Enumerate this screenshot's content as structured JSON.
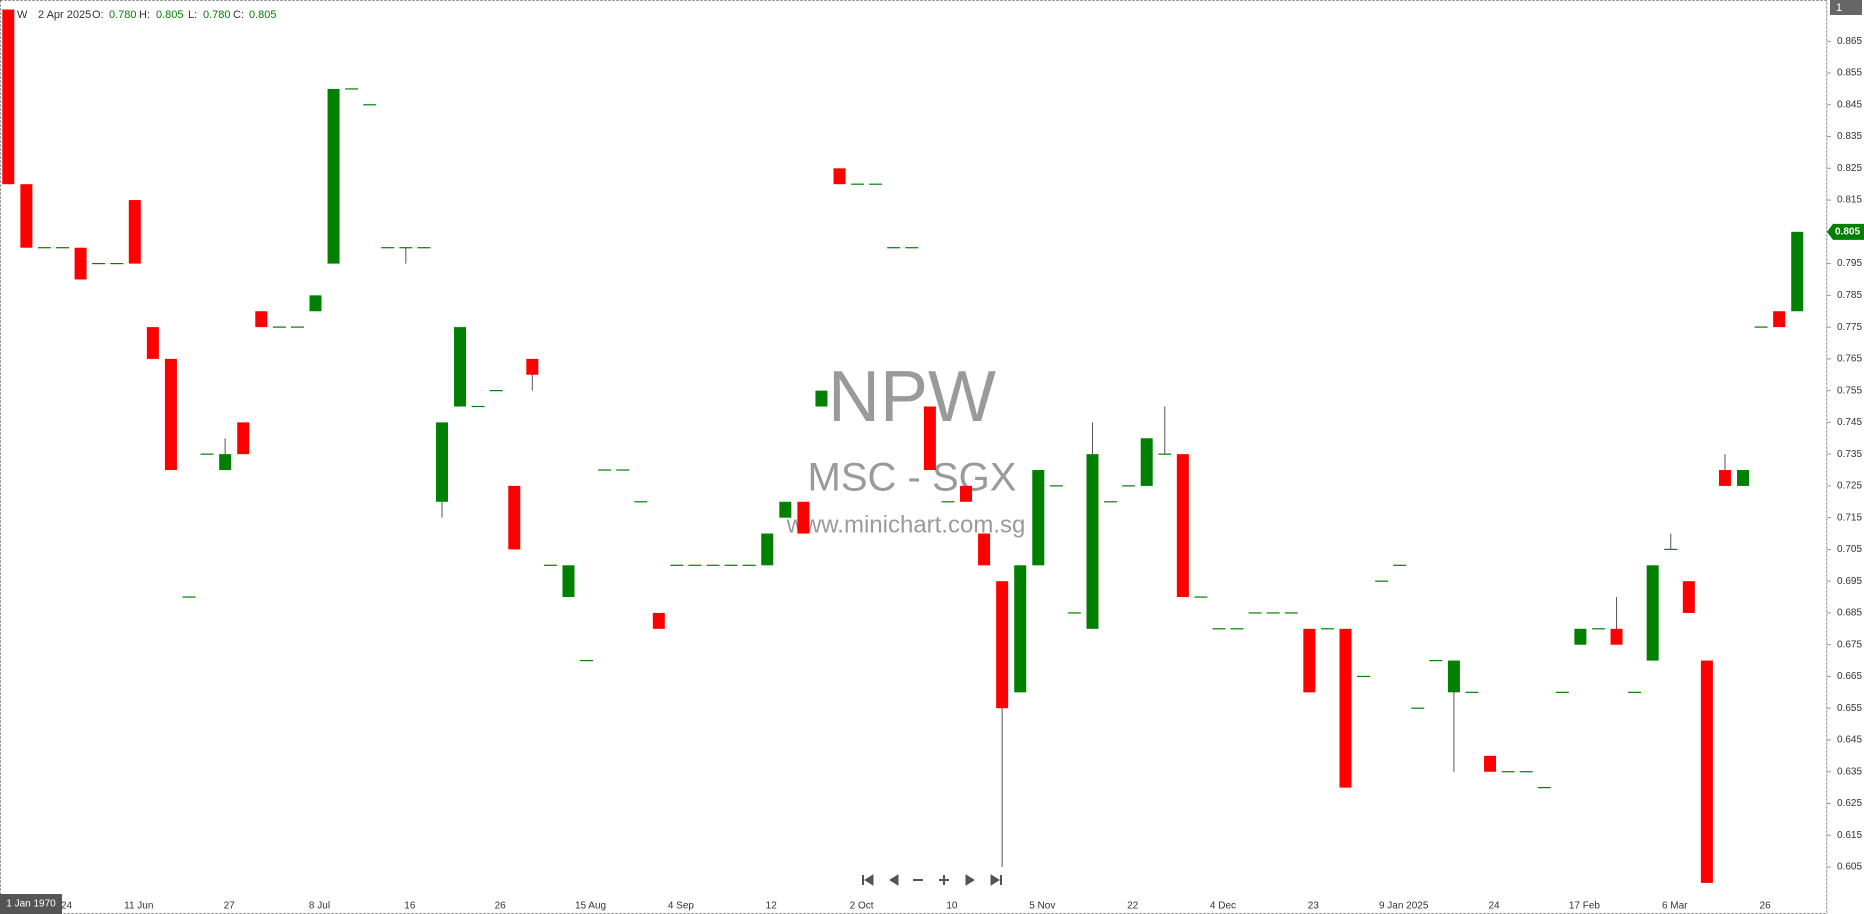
{
  "chart_data": {
    "type": "candlestick",
    "legend": {
      "symbol": "W",
      "date": "2 Apr 2025",
      "fields": [
        {
          "name": "O:",
          "value": "0.780"
        },
        {
          "name": "H:",
          "value": "0.805"
        },
        {
          "name": "L:",
          "value": "0.780"
        },
        {
          "name": "C:",
          "value": "0.805"
        }
      ]
    },
    "watermark": {
      "symbol": "NPW",
      "exchange": "MSC - SGX",
      "site": "www.minichart.com.sg"
    },
    "crosshair_date": "1 Jan 1970",
    "pane_badge": "1",
    "up_color": "#008000",
    "down_color": "#ff0000",
    "wick_color": "#555555",
    "ylim": [
      0.5965,
      0.878
    ],
    "yticks": [
      0.605,
      0.615,
      0.625,
      0.635,
      0.645,
      0.655,
      0.665,
      0.675,
      0.685,
      0.695,
      0.705,
      0.715,
      0.725,
      0.735,
      0.745,
      0.755,
      0.765,
      0.775,
      0.785,
      0.795,
      0.805,
      0.815,
      0.825,
      0.835,
      0.845,
      0.855,
      0.865
    ],
    "categories": [
      null,
      null,
      null,
      "24",
      null,
      null,
      null,
      "11 Jun",
      null,
      null,
      null,
      null,
      "27",
      null,
      null,
      null,
      null,
      "8 Jul",
      null,
      null,
      null,
      null,
      "16",
      null,
      null,
      null,
      null,
      "26",
      null,
      null,
      null,
      null,
      "15 Aug",
      null,
      null,
      null,
      null,
      "4 Sep",
      null,
      null,
      null,
      null,
      "12",
      null,
      null,
      null,
      null,
      "2 Oct",
      null,
      null,
      null,
      null,
      "10",
      null,
      null,
      null,
      null,
      "5 Nov",
      null,
      null,
      null,
      null,
      "22",
      null,
      null,
      null,
      null,
      "4 Dec",
      null,
      null,
      null,
      null,
      "23",
      null,
      null,
      null,
      null,
      "9 Jan 2025",
      null,
      null,
      null,
      null,
      "24",
      null,
      null,
      null,
      null,
      "17 Feb",
      null,
      null,
      null,
      null,
      "6 Mar",
      null,
      null,
      null,
      null,
      "26",
      null,
      null
    ],
    "open": [
      0.875,
      0.82,
      0.8,
      0.8,
      0.8,
      0.795,
      0.795,
      0.815,
      0.775,
      0.765,
      0.69,
      0.735,
      0.73,
      0.745,
      0.78,
      0.775,
      0.775,
      0.78,
      0.795,
      0.85,
      0.845,
      0.8,
      0.8,
      0.8,
      0.72,
      0.75,
      0.75,
      0.755,
      0.725,
      0.765,
      0.7,
      0.69,
      0.67,
      0.73,
      0.73,
      0.72,
      0.685,
      0.7,
      0.7,
      0.7,
      0.7,
      0.7,
      0.7,
      0.715,
      0.72,
      0.75,
      0.825,
      0.82,
      0.82,
      0.8,
      0.8,
      0.75,
      0.72,
      0.725,
      0.71,
      0.695,
      0.66,
      0.7,
      0.725,
      0.685,
      0.68,
      0.72,
      0.725,
      0.725,
      0.735,
      0.735,
      0.69,
      0.68,
      0.68,
      0.685,
      0.685,
      0.685,
      0.68,
      0.68,
      0.68,
      0.665,
      0.695,
      0.7,
      0.655,
      0.67,
      0.66,
      0.66,
      0.64,
      0.635,
      0.635,
      0.63,
      0.66,
      0.675,
      0.68,
      0.68,
      0.66,
      0.67,
      0.705,
      0.695,
      0.67,
      0.73,
      0.725,
      0.775,
      0.78,
      0.78
    ],
    "high": [
      0.875,
      0.82,
      0.8,
      0.8,
      0.8,
      0.795,
      0.795,
      0.815,
      0.775,
      0.765,
      0.69,
      0.735,
      0.74,
      0.745,
      0.78,
      0.775,
      0.775,
      0.785,
      0.85,
      0.85,
      0.845,
      0.8,
      0.8,
      0.8,
      0.745,
      0.775,
      0.75,
      0.755,
      0.725,
      0.765,
      0.7,
      0.7,
      0.67,
      0.73,
      0.73,
      0.72,
      0.685,
      0.7,
      0.7,
      0.7,
      0.7,
      0.7,
      0.71,
      0.72,
      0.72,
      0.755,
      0.825,
      0.82,
      0.82,
      0.8,
      0.8,
      0.75,
      0.72,
      0.725,
      0.71,
      0.695,
      0.7,
      0.73,
      0.725,
      0.685,
      0.745,
      0.72,
      0.725,
      0.74,
      0.75,
      0.735,
      0.69,
      0.68,
      0.68,
      0.685,
      0.685,
      0.685,
      0.68,
      0.68,
      0.68,
      0.665,
      0.695,
      0.7,
      0.655,
      0.67,
      0.67,
      0.66,
      0.64,
      0.635,
      0.635,
      0.63,
      0.66,
      0.68,
      0.68,
      0.69,
      0.66,
      0.7,
      0.71,
      0.695,
      0.67,
      0.735,
      0.73,
      0.775,
      0.78,
      0.805
    ],
    "low": [
      0.82,
      0.8,
      0.8,
      0.8,
      0.79,
      0.795,
      0.795,
      0.795,
      0.765,
      0.73,
      0.69,
      0.735,
      0.73,
      0.735,
      0.775,
      0.775,
      0.775,
      0.78,
      0.795,
      0.85,
      0.845,
      0.8,
      0.795,
      0.8,
      0.715,
      0.75,
      0.75,
      0.755,
      0.705,
      0.755,
      0.7,
      0.69,
      0.67,
      0.73,
      0.73,
      0.72,
      0.68,
      0.7,
      0.7,
      0.7,
      0.7,
      0.7,
      0.7,
      0.715,
      0.71,
      0.75,
      0.82,
      0.82,
      0.82,
      0.8,
      0.8,
      0.73,
      0.72,
      0.72,
      0.7,
      0.605,
      0.66,
      0.7,
      0.725,
      0.685,
      0.68,
      0.72,
      0.725,
      0.725,
      0.735,
      0.69,
      0.69,
      0.68,
      0.68,
      0.685,
      0.685,
      0.685,
      0.66,
      0.68,
      0.63,
      0.665,
      0.695,
      0.7,
      0.655,
      0.67,
      0.635,
      0.66,
      0.635,
      0.635,
      0.635,
      0.63,
      0.66,
      0.675,
      0.68,
      0.675,
      0.66,
      0.67,
      0.705,
      0.685,
      0.6,
      0.725,
      0.725,
      0.775,
      0.775,
      0.78
    ],
    "close": [
      0.82,
      0.8,
      0.8,
      0.8,
      0.79,
      0.795,
      0.795,
      0.795,
      0.765,
      0.73,
      0.69,
      0.735,
      0.735,
      0.735,
      0.775,
      0.775,
      0.775,
      0.785,
      0.85,
      0.85,
      0.845,
      0.8,
      0.8,
      0.8,
      0.745,
      0.775,
      0.75,
      0.755,
      0.705,
      0.76,
      0.7,
      0.7,
      0.67,
      0.73,
      0.73,
      0.72,
      0.68,
      0.7,
      0.7,
      0.7,
      0.7,
      0.7,
      0.71,
      0.72,
      0.71,
      0.755,
      0.82,
      0.82,
      0.82,
      0.8,
      0.8,
      0.73,
      0.72,
      0.72,
      0.7,
      0.655,
      0.7,
      0.73,
      0.725,
      0.685,
      0.735,
      0.72,
      0.725,
      0.74,
      0.735,
      0.69,
      0.69,
      0.68,
      0.68,
      0.685,
      0.685,
      0.685,
      0.66,
      0.68,
      0.63,
      0.665,
      0.695,
      0.7,
      0.655,
      0.67,
      0.67,
      0.66,
      0.635,
      0.635,
      0.635,
      0.63,
      0.66,
      0.68,
      0.68,
      0.675,
      0.66,
      0.7,
      0.705,
      0.685,
      0.6,
      0.725,
      0.73,
      0.775,
      0.775,
      0.805
    ]
  }
}
